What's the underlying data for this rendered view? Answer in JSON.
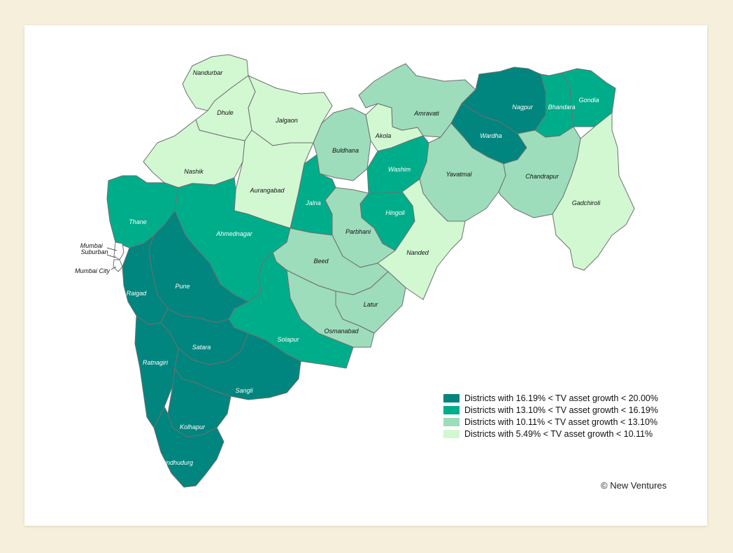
{
  "colors": {
    "c1": "#00857f",
    "c2": "#00ad8b",
    "c3": "#9dddbb",
    "c4": "#d2f8d2",
    "background": "#f6efdc",
    "border": "#6f6f6f"
  },
  "districts": [
    {
      "id": "nandurbar",
      "label": "Nandurbar",
      "category": 4
    },
    {
      "id": "dhule",
      "label": "Dhule",
      "category": 4
    },
    {
      "id": "jalgaon",
      "label": "Jalgaon",
      "category": 4
    },
    {
      "id": "nashik",
      "label": "Nashik",
      "category": 4
    },
    {
      "id": "aurangabad",
      "label": "Aurangabad",
      "category": 4
    },
    {
      "id": "buldhana",
      "label": "Buldhana",
      "category": 3
    },
    {
      "id": "akola",
      "label": "Akola",
      "category": 4
    },
    {
      "id": "amravati",
      "label": "Amravati",
      "category": 3
    },
    {
      "id": "nagpur",
      "label": "Nagpur",
      "category": 1
    },
    {
      "id": "wardha",
      "label": "Wardha",
      "category": 1
    },
    {
      "id": "bhandara",
      "label": "Bhandara",
      "category": 2
    },
    {
      "id": "gondia",
      "label": "Gondia",
      "category": 2
    },
    {
      "id": "washim",
      "label": "Washim",
      "category": 2
    },
    {
      "id": "yavatmal",
      "label": "Yavatmal",
      "category": 3
    },
    {
      "id": "chandrapur",
      "label": "Chandrapur",
      "category": 3
    },
    {
      "id": "gadchiroli",
      "label": "Gadchiroli",
      "category": 4
    },
    {
      "id": "jalna",
      "label": "Jalna",
      "category": 2
    },
    {
      "id": "hingoli",
      "label": "Hingoli",
      "category": 2
    },
    {
      "id": "parbhani",
      "label": "Parbhani",
      "category": 3
    },
    {
      "id": "nanded",
      "label": "Nanded",
      "category": 4
    },
    {
      "id": "thane",
      "label": "Thane",
      "category": 2
    },
    {
      "id": "ahmednagar",
      "label": "Ahmednagar",
      "category": 2
    },
    {
      "id": "beed",
      "label": "Beed",
      "category": 3
    },
    {
      "id": "latur",
      "label": "Latur",
      "category": 3
    },
    {
      "id": "osmanabad",
      "label": "Osmanabad",
      "category": 3
    },
    {
      "id": "solapur",
      "label": "Solapur",
      "category": 2
    },
    {
      "id": "pune",
      "label": "Pune",
      "category": 1
    },
    {
      "id": "raigad",
      "label": "Raigad",
      "category": 1
    },
    {
      "id": "satara",
      "label": "Satara",
      "category": 1
    },
    {
      "id": "ratnagiri",
      "label": "Ratnagiri",
      "category": 1
    },
    {
      "id": "sangli",
      "label": "Sangli",
      "category": 1
    },
    {
      "id": "kolhapur",
      "label": "Kolhapur",
      "category": 1
    },
    {
      "id": "sindhudurg",
      "label": "Sindhudurg",
      "category": 1
    },
    {
      "id": "mumbai-suburban",
      "label": "Mumbai Suburban",
      "category": 0
    },
    {
      "id": "mumbai-city",
      "label": "Mumbai City",
      "category": 0
    }
  ],
  "legend": [
    {
      "category": 1,
      "label": "Districts with 16.19% < TV asset growth < 20.00%"
    },
    {
      "category": 2,
      "label": "Districts with 13.10% < TV asset growth < 16.19%"
    },
    {
      "category": 3,
      "label": "Districts with 10.11% < TV asset growth < 13.10%"
    },
    {
      "category": 4,
      "label": "Districts with 5.49% < TV asset growth < 10.11%"
    }
  ],
  "credit": "© New Ventures"
}
